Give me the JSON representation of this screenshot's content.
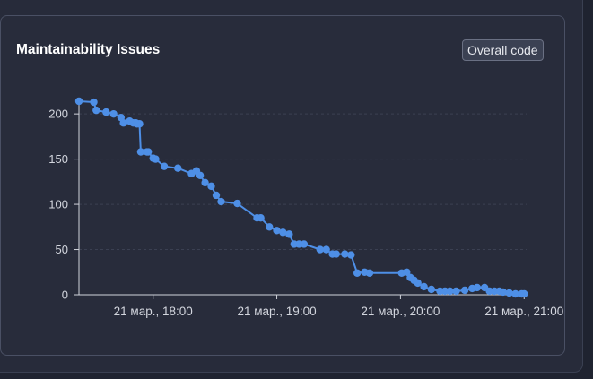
{
  "card": {
    "title": "Maintainability Issues",
    "scope_button": "Overall code"
  },
  "colors": {
    "background": "#272b3a",
    "series": "#4e8fe6",
    "grid": "#3b4052",
    "axis": "#d0d3db"
  },
  "chart_data": {
    "type": "line",
    "title": "Maintainability Issues",
    "xlabel": "",
    "ylabel": "",
    "ylim": [
      0,
      215
    ],
    "yticks": [
      0,
      50,
      100,
      150,
      200
    ],
    "xlim": [
      17.4,
      21.02
    ],
    "xticks": [
      {
        "value": 18,
        "label": "21 мар., 18:00"
      },
      {
        "value": 19,
        "label": "21 мар., 19:00"
      },
      {
        "value": 20,
        "label": "21 мар., 20:00"
      },
      {
        "value": 21,
        "label": "21 мар., 21:00"
      }
    ],
    "series": [
      {
        "name": "Maintainability Issues",
        "x": [
          17.4,
          17.52,
          17.54,
          17.62,
          17.68,
          17.74,
          17.76,
          17.81,
          17.84,
          17.86,
          17.87,
          17.89,
          17.9,
          17.95,
          17.96,
          18.0,
          18.02,
          18.09,
          18.2,
          18.31,
          18.35,
          18.38,
          18.42,
          18.47,
          18.51,
          18.55,
          18.68,
          18.84,
          18.87,
          18.94,
          19.0,
          19.05,
          19.1,
          19.14,
          19.18,
          19.22,
          19.35,
          19.4,
          19.45,
          19.48,
          19.55,
          19.6,
          19.65,
          19.71,
          19.75,
          20.01,
          20.05,
          20.08,
          20.11,
          20.14,
          20.19,
          20.25,
          20.32,
          20.36,
          20.4,
          20.45,
          20.52,
          20.58,
          20.62,
          20.68,
          20.72,
          20.76,
          20.8,
          20.83,
          20.88,
          20.93,
          20.98,
          21.0
        ],
        "y": [
          214,
          213,
          204,
          202,
          200,
          196,
          190,
          192,
          190,
          190,
          189,
          189,
          158,
          158,
          158,
          151,
          150,
          142,
          140,
          134,
          137,
          132,
          124,
          120,
          110,
          103,
          101,
          85,
          85,
          75,
          71,
          69,
          67,
          56,
          56,
          56,
          50,
          50,
          45,
          45,
          45,
          44,
          24,
          25,
          24,
          24,
          25,
          19,
          16,
          13,
          9,
          6,
          4,
          4,
          4,
          4,
          5,
          7,
          8,
          8,
          4,
          4,
          4,
          3,
          2,
          1,
          1,
          1
        ]
      }
    ]
  }
}
